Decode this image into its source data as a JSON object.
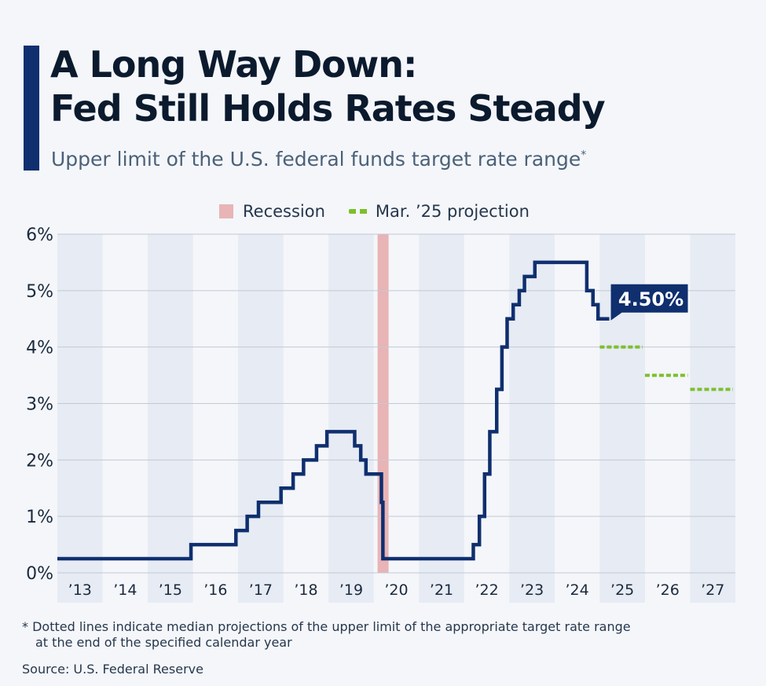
{
  "header": {
    "title_line1": "A Long Way Down:",
    "title_line2": "Fed Still Holds Rates Steady",
    "subtitle": "Upper limit of the U.S. federal funds target rate range",
    "subtitle_mark": "*"
  },
  "legend": {
    "recession_label": "Recession",
    "projection_label": "Mar. ’25 projection"
  },
  "colors": {
    "line": "#0f2f6e",
    "recession": "#e8b4b6",
    "projection": "#7cc02a",
    "band": "#e6ebf4",
    "grid": "#c3c9d3",
    "axis_text": "#1b2a3d"
  },
  "chart_data": {
    "type": "line",
    "xlim": [
      2013,
      2028
    ],
    "ylim": [
      0,
      6
    ],
    "y_ticks": [
      0,
      1,
      2,
      3,
      4,
      5,
      6
    ],
    "y_tick_labels": [
      "0%",
      "1%",
      "2%",
      "3%",
      "4%",
      "5%",
      "6%"
    ],
    "x_ticks": [
      2013,
      2014,
      2015,
      2016,
      2017,
      2018,
      2019,
      2020,
      2021,
      2022,
      2023,
      2024,
      2025,
      2026,
      2027
    ],
    "x_tick_labels": [
      "’13",
      "’14",
      "’15",
      "’16",
      "’17",
      "’18",
      "’19",
      "’20",
      "’21",
      "’22",
      "’23",
      "’24",
      "’25",
      "’26",
      "’27"
    ],
    "grid": true,
    "legend_position": "top",
    "series": [
      {
        "name": "Upper limit of the U.S. federal funds target rate range",
        "step": true,
        "points": [
          {
            "x": "2013-01-01",
            "y": 0.25
          },
          {
            "x": "2015-12-16",
            "y": 0.5
          },
          {
            "x": "2016-12-14",
            "y": 0.75
          },
          {
            "x": "2017-03-15",
            "y": 1.0
          },
          {
            "x": "2017-06-14",
            "y": 1.25
          },
          {
            "x": "2017-12-13",
            "y": 1.5
          },
          {
            "x": "2018-03-21",
            "y": 1.75
          },
          {
            "x": "2018-06-13",
            "y": 2.0
          },
          {
            "x": "2018-09-26",
            "y": 2.25
          },
          {
            "x": "2018-12-19",
            "y": 2.5
          },
          {
            "x": "2019-07-31",
            "y": 2.25
          },
          {
            "x": "2019-09-18",
            "y": 2.0
          },
          {
            "x": "2019-10-30",
            "y": 1.75
          },
          {
            "x": "2020-03-03",
            "y": 1.25
          },
          {
            "x": "2020-03-15",
            "y": 0.25
          },
          {
            "x": "2022-03-16",
            "y": 0.5
          },
          {
            "x": "2022-05-04",
            "y": 1.0
          },
          {
            "x": "2022-06-15",
            "y": 1.75
          },
          {
            "x": "2022-07-27",
            "y": 2.5
          },
          {
            "x": "2022-09-21",
            "y": 3.25
          },
          {
            "x": "2022-11-02",
            "y": 4.0
          },
          {
            "x": "2022-12-14",
            "y": 4.5
          },
          {
            "x": "2023-02-01",
            "y": 4.75
          },
          {
            "x": "2023-03-22",
            "y": 5.0
          },
          {
            "x": "2023-05-03",
            "y": 5.25
          },
          {
            "x": "2023-07-26",
            "y": 5.5
          },
          {
            "x": "2024-09-18",
            "y": 5.0
          },
          {
            "x": "2024-11-07",
            "y": 4.75
          },
          {
            "x": "2024-12-18",
            "y": 4.5
          },
          {
            "x": "2025-03-19",
            "y": 4.5
          }
        ]
      },
      {
        "name": "Mar. ’25 projection",
        "style": "dotted",
        "segments": [
          {
            "x_start": 2025,
            "x_end": 2026,
            "y": 4.0
          },
          {
            "x_start": 2026,
            "x_end": 2027,
            "y": 3.5
          },
          {
            "x_start": 2027,
            "x_end": 2028,
            "y": 3.25
          }
        ]
      }
    ],
    "recession": {
      "start": "2020-02-01",
      "end": "2020-04-30"
    },
    "annotation": {
      "label": "4.50%",
      "x": "2025-03-19",
      "y": 4.5
    }
  },
  "footnote": {
    "line1": "* Dotted lines indicate median projections of the upper limit of the appropriate target rate range",
    "line2": "at the end of the specified calendar year"
  },
  "source": "Source: U.S. Federal Reserve"
}
